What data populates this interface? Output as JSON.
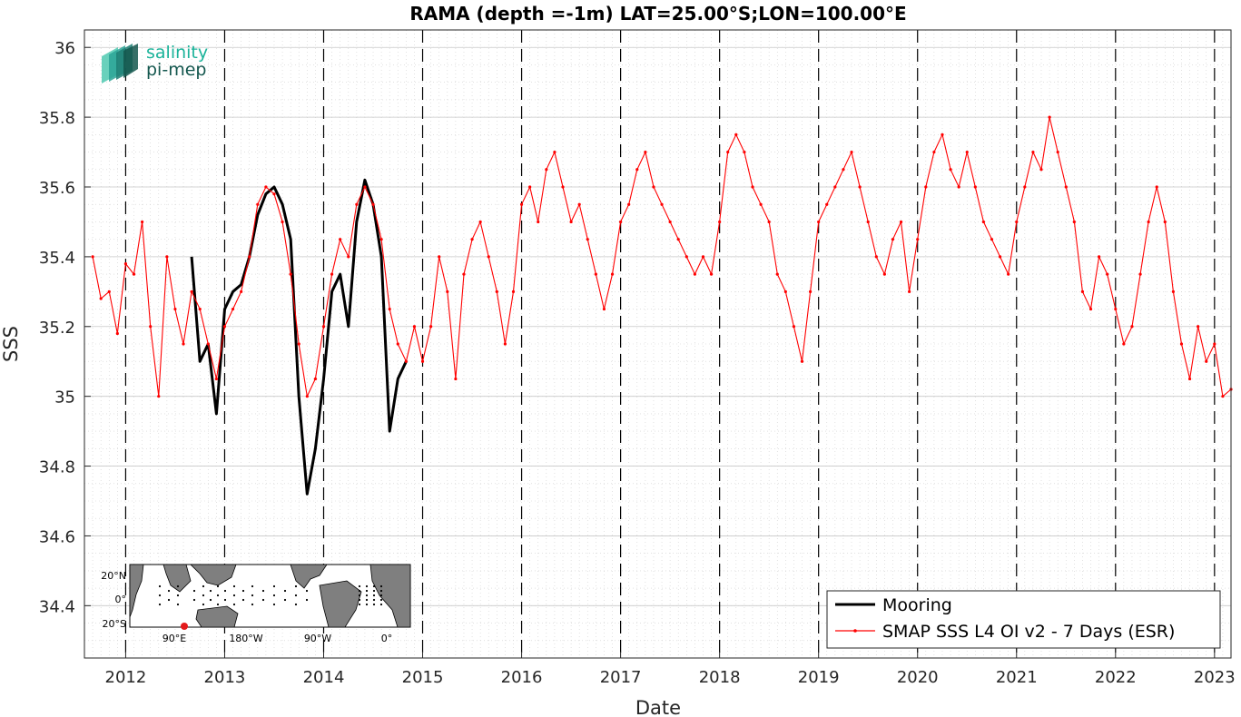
{
  "logo": {
    "line1": "salinity",
    "line2": "pi-mep"
  },
  "inset_map": {
    "lat_labels": [
      "20°N",
      "0°",
      "20°S"
    ],
    "lon_labels": [
      "90°E",
      "180°W",
      "90°W",
      "0°"
    ],
    "marker_color": "#e41a1c"
  },
  "colors": {
    "mooring": "#000000",
    "satellite": "#ff0000",
    "grid": "#cfcfcf"
  },
  "chart_data": {
    "type": "line",
    "title": "RAMA (depth =-1m) LAT=25.00°S;LON=100.00°E",
    "xlabel": "Date",
    "ylabel": "SSS",
    "xlim": [
      "2011-08",
      "2023-03"
    ],
    "ylim": [
      34.25,
      36.05
    ],
    "xticks": [
      "2012",
      "2013",
      "2014",
      "2015",
      "2016",
      "2017",
      "2018",
      "2019",
      "2020",
      "2021",
      "2022",
      "2023"
    ],
    "yticks": [
      "34.4",
      "34.6",
      "34.8",
      "35",
      "35.2",
      "35.4",
      "35.6",
      "35.8",
      "36"
    ],
    "year_boundaries": true,
    "grid": true,
    "legend_position": "bottom-right",
    "series": [
      {
        "name": "Mooring",
        "color": "#000000",
        "points": [
          [
            "2012-09",
            35.4
          ],
          [
            "2012-10",
            35.1
          ],
          [
            "2012-11",
            35.15
          ],
          [
            "2012-12",
            34.95
          ],
          [
            "2013-01",
            35.25
          ],
          [
            "2013-02",
            35.3
          ],
          [
            "2013-03",
            35.32
          ],
          [
            "2013-04",
            35.4
          ],
          [
            "2013-05",
            35.52
          ],
          [
            "2013-06",
            35.58
          ],
          [
            "2013-07",
            35.6
          ],
          [
            "2013-08",
            35.55
          ],
          [
            "2013-09",
            35.45
          ],
          [
            "2013-10",
            35.0
          ],
          [
            "2013-11",
            34.72
          ],
          [
            "2013-12",
            34.85
          ],
          [
            "2014-01",
            35.05
          ],
          [
            "2014-02",
            35.3
          ],
          [
            "2014-03",
            35.35
          ],
          [
            "2014-04",
            35.2
          ],
          [
            "2014-05",
            35.5
          ],
          [
            "2014-06",
            35.62
          ],
          [
            "2014-07",
            35.55
          ],
          [
            "2014-08",
            35.4
          ],
          [
            "2014-09",
            34.9
          ],
          [
            "2014-10",
            35.05
          ],
          [
            "2014-11",
            35.1
          ]
        ]
      },
      {
        "name": "SMAP SSS L4 OI v2 - 7 Days (ESR)",
        "color": "#ff0000",
        "points": [
          [
            "2011-09",
            35.4
          ],
          [
            "2011-10",
            35.28
          ],
          [
            "2011-11",
            35.3
          ],
          [
            "2011-12",
            35.18
          ],
          [
            "2012-01",
            35.38
          ],
          [
            "2012-02",
            35.35
          ],
          [
            "2012-03",
            35.5
          ],
          [
            "2012-04",
            35.2
          ],
          [
            "2012-05",
            35.0
          ],
          [
            "2012-06",
            35.4
          ],
          [
            "2012-07",
            35.25
          ],
          [
            "2012-08",
            35.15
          ],
          [
            "2012-09",
            35.3
          ],
          [
            "2012-10",
            35.25
          ],
          [
            "2012-11",
            35.15
          ],
          [
            "2012-12",
            35.05
          ],
          [
            "2013-01",
            35.2
          ],
          [
            "2013-02",
            35.25
          ],
          [
            "2013-03",
            35.3
          ],
          [
            "2013-04",
            35.4
          ],
          [
            "2013-05",
            35.55
          ],
          [
            "2013-06",
            35.6
          ],
          [
            "2013-07",
            35.58
          ],
          [
            "2013-08",
            35.5
          ],
          [
            "2013-09",
            35.35
          ],
          [
            "2013-10",
            35.15
          ],
          [
            "2013-11",
            35.0
          ],
          [
            "2013-12",
            35.05
          ],
          [
            "2014-01",
            35.2
          ],
          [
            "2014-02",
            35.35
          ],
          [
            "2014-03",
            35.45
          ],
          [
            "2014-04",
            35.4
          ],
          [
            "2014-05",
            35.55
          ],
          [
            "2014-06",
            35.6
          ],
          [
            "2014-07",
            35.55
          ],
          [
            "2014-08",
            35.45
          ],
          [
            "2014-09",
            35.25
          ],
          [
            "2014-10",
            35.15
          ],
          [
            "2014-11",
            35.1
          ],
          [
            "2014-12",
            35.2
          ],
          [
            "2015-01",
            35.1
          ],
          [
            "2015-02",
            35.2
          ],
          [
            "2015-03",
            35.4
          ],
          [
            "2015-04",
            35.3
          ],
          [
            "2015-05",
            35.05
          ],
          [
            "2015-06",
            35.35
          ],
          [
            "2015-07",
            35.45
          ],
          [
            "2015-08",
            35.5
          ],
          [
            "2015-09",
            35.4
          ],
          [
            "2015-10",
            35.3
          ],
          [
            "2015-11",
            35.15
          ],
          [
            "2015-12",
            35.3
          ],
          [
            "2016-01",
            35.55
          ],
          [
            "2016-02",
            35.6
          ],
          [
            "2016-03",
            35.5
          ],
          [
            "2016-04",
            35.65
          ],
          [
            "2016-05",
            35.7
          ],
          [
            "2016-06",
            35.6
          ],
          [
            "2016-07",
            35.5
          ],
          [
            "2016-08",
            35.55
          ],
          [
            "2016-09",
            35.45
          ],
          [
            "2016-10",
            35.35
          ],
          [
            "2016-11",
            35.25
          ],
          [
            "2016-12",
            35.35
          ],
          [
            "2017-01",
            35.5
          ],
          [
            "2017-02",
            35.55
          ],
          [
            "2017-03",
            35.65
          ],
          [
            "2017-04",
            35.7
          ],
          [
            "2017-05",
            35.6
          ],
          [
            "2017-06",
            35.55
          ],
          [
            "2017-07",
            35.5
          ],
          [
            "2017-08",
            35.45
          ],
          [
            "2017-09",
            35.4
          ],
          [
            "2017-10",
            35.35
          ],
          [
            "2017-11",
            35.4
          ],
          [
            "2017-12",
            35.35
          ],
          [
            "2018-01",
            35.5
          ],
          [
            "2018-02",
            35.7
          ],
          [
            "2018-03",
            35.75
          ],
          [
            "2018-04",
            35.7
          ],
          [
            "2018-05",
            35.6
          ],
          [
            "2018-06",
            35.55
          ],
          [
            "2018-07",
            35.5
          ],
          [
            "2018-08",
            35.35
          ],
          [
            "2018-09",
            35.3
          ],
          [
            "2018-10",
            35.2
          ],
          [
            "2018-11",
            35.1
          ],
          [
            "2018-12",
            35.3
          ],
          [
            "2019-01",
            35.5
          ],
          [
            "2019-02",
            35.55
          ],
          [
            "2019-03",
            35.6
          ],
          [
            "2019-04",
            35.65
          ],
          [
            "2019-05",
            35.7
          ],
          [
            "2019-06",
            35.6
          ],
          [
            "2019-07",
            35.5
          ],
          [
            "2019-08",
            35.4
          ],
          [
            "2019-09",
            35.35
          ],
          [
            "2019-10",
            35.45
          ],
          [
            "2019-11",
            35.5
          ],
          [
            "2019-12",
            35.3
          ],
          [
            "2020-01",
            35.45
          ],
          [
            "2020-02",
            35.6
          ],
          [
            "2020-03",
            35.7
          ],
          [
            "2020-04",
            35.75
          ],
          [
            "2020-05",
            35.65
          ],
          [
            "2020-06",
            35.6
          ],
          [
            "2020-07",
            35.7
          ],
          [
            "2020-08",
            35.6
          ],
          [
            "2020-09",
            35.5
          ],
          [
            "2020-10",
            35.45
          ],
          [
            "2020-11",
            35.4
          ],
          [
            "2020-12",
            35.35
          ],
          [
            "2021-01",
            35.5
          ],
          [
            "2021-02",
            35.6
          ],
          [
            "2021-03",
            35.7
          ],
          [
            "2021-04",
            35.65
          ],
          [
            "2021-05",
            35.8
          ],
          [
            "2021-06",
            35.7
          ],
          [
            "2021-07",
            35.6
          ],
          [
            "2021-08",
            35.5
          ],
          [
            "2021-09",
            35.3
          ],
          [
            "2021-10",
            35.25
          ],
          [
            "2021-11",
            35.4
          ],
          [
            "2021-12",
            35.35
          ],
          [
            "2022-01",
            35.25
          ],
          [
            "2022-02",
            35.15
          ],
          [
            "2022-03",
            35.2
          ],
          [
            "2022-04",
            35.35
          ],
          [
            "2022-05",
            35.5
          ],
          [
            "2022-06",
            35.6
          ],
          [
            "2022-07",
            35.5
          ],
          [
            "2022-08",
            35.3
          ],
          [
            "2022-09",
            35.15
          ],
          [
            "2022-10",
            35.05
          ],
          [
            "2022-11",
            35.2
          ],
          [
            "2022-12",
            35.1
          ],
          [
            "2023-01",
            35.15
          ],
          [
            "2023-02",
            35.0
          ],
          [
            "2023-03",
            35.02
          ]
        ]
      }
    ]
  }
}
